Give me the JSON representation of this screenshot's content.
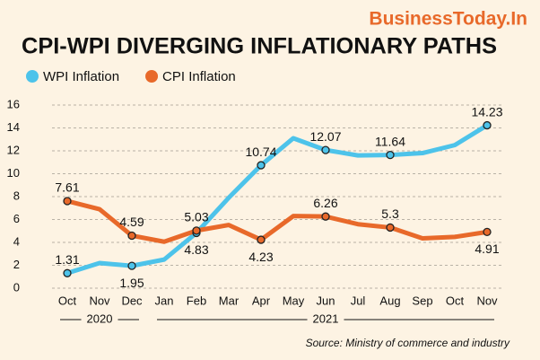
{
  "chart_data": {
    "type": "line",
    "brand": "BusinessToday.In",
    "title": "CPI-WPI DIVERGING INFLATIONARY PATHS",
    "source": "Source: Ministry of commerce and industry",
    "categories": [
      "Oct",
      "Nov",
      "Dec",
      "Jan",
      "Feb",
      "Mar",
      "Apr",
      "May",
      "Jun",
      "Jul",
      "Aug",
      "Sep",
      "Oct",
      "Nov"
    ],
    "groups": [
      {
        "label": "2020",
        "span": 3
      },
      {
        "label": "2021",
        "span": 11
      }
    ],
    "series": [
      {
        "name": "WPI Inflation",
        "color": "#4dc3ea",
        "values": [
          1.31,
          2.2,
          1.95,
          2.5,
          4.83,
          7.9,
          10.74,
          13.1,
          12.07,
          11.6,
          11.64,
          11.8,
          12.5,
          14.23
        ],
        "value_labels": [
          "1.31",
          null,
          "1.95",
          null,
          "4.83",
          null,
          "10.74",
          null,
          "12.07",
          null,
          "11.64",
          null,
          null,
          "14.23"
        ]
      },
      {
        "name": "CPI Inflation",
        "color": "#e8692a",
        "values": [
          7.61,
          6.9,
          4.59,
          4.06,
          5.03,
          5.52,
          4.23,
          6.3,
          6.26,
          5.59,
          5.3,
          4.35,
          4.48,
          4.91
        ],
        "value_labels": [
          "7.61",
          null,
          "4.59",
          null,
          "5.03",
          null,
          "4.23",
          null,
          "6.26",
          null,
          "5.3",
          null,
          null,
          "4.91"
        ]
      }
    ],
    "ylim": [
      0,
      16
    ],
    "yticks": [
      0,
      2,
      4,
      6,
      8,
      10,
      12,
      14,
      16
    ],
    "grid": true
  }
}
